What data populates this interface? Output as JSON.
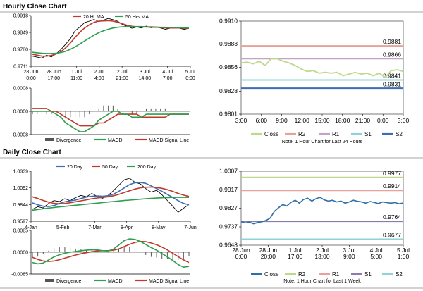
{
  "sections": {
    "hourly_title": "Hourly Close Chart",
    "daily_title": "Daily Close Chart"
  },
  "chart_data": [
    {
      "id": "hourly-price",
      "type": "line",
      "y_ticks": [
        "0.9918",
        "0.9849",
        "0.9780",
        "0.9711"
      ],
      "ylim": [
        0.9711,
        0.9918
      ],
      "x_ticks": [
        [
          "28 Jun",
          "0:00"
        ],
        [
          "28 Jun",
          "17:00"
        ],
        [
          "1 Jul",
          "11:00"
        ],
        [
          "2 Jul",
          "4:00"
        ],
        [
          "2 Jul",
          "21:00"
        ],
        [
          "3 Jul",
          "14:00"
        ],
        [
          "4 Jul",
          "7:00"
        ],
        [
          "5 Jul",
          "0:00"
        ]
      ],
      "legend": [
        "20 Hr MA",
        "50 Hrs MA"
      ],
      "colors": {
        "price": "#000000",
        "ma_fast": "#c0392b",
        "ma_slow": "#2e9e4f"
      },
      "series": [
        {
          "name": "Close",
          "values": [
            0.9752,
            0.9748,
            0.9744,
            0.9756,
            0.9749,
            0.9762,
            0.9779,
            0.9801,
            0.9823,
            0.9856,
            0.9871,
            0.9889,
            0.9895,
            0.9902,
            0.9893,
            0.9899,
            0.9906,
            0.9901,
            0.9894,
            0.9881,
            0.9874,
            0.9866,
            0.9871,
            0.9867,
            0.9875,
            0.9868,
            0.9872,
            0.9867,
            0.9862,
            0.9866,
            0.9869,
            0.9866,
            0.9862,
            0.9866
          ]
        },
        {
          "name": "20 Hr MA",
          "values": [
            0.976,
            0.9756,
            0.9752,
            0.9752,
            0.9755,
            0.9761,
            0.977,
            0.9786,
            0.9806,
            0.9829,
            0.985,
            0.9867,
            0.988,
            0.989,
            0.9895,
            0.9896,
            0.9897,
            0.9895,
            0.989,
            0.9884,
            0.9878,
            0.9874,
            0.9872,
            0.9871,
            0.9871,
            0.987,
            0.987,
            0.9869,
            0.9868,
            0.9867,
            0.9867,
            0.9867,
            0.9866,
            0.9866
          ]
        },
        {
          "name": "50 Hrs MA",
          "values": [
            0.9768,
            0.9766,
            0.9764,
            0.9763,
            0.9763,
            0.9764,
            0.9767,
            0.9772,
            0.978,
            0.979,
            0.9802,
            0.9814,
            0.9826,
            0.9838,
            0.9848,
            0.9856,
            0.9862,
            0.9867,
            0.987,
            0.9872,
            0.9873,
            0.9873,
            0.9873,
            0.9873,
            0.9872,
            0.9872,
            0.9871,
            0.987,
            0.987,
            0.9869,
            0.9869,
            0.9868,
            0.9868,
            0.9867
          ]
        }
      ]
    },
    {
      "id": "hourly-macd",
      "type": "line",
      "y_ticks": [
        "0.0008",
        "0.0000",
        "-0.0008"
      ],
      "ylim": [
        -0.0008,
        0.0008
      ],
      "legend": [
        "Divergence",
        "MACD",
        "MACD Signal Line"
      ],
      "colors": {
        "divergence": "#555555",
        "macd": "#2e9e4f",
        "signal": "#c0392b"
      },
      "series": [
        {
          "name": "MACD",
          "values": [
            0.0,
            0.0,
            0.0,
            0.0,
            0.0,
            -0.0001,
            -0.0002,
            -0.0004,
            -0.0005,
            -0.0006,
            -0.0007,
            -0.0007,
            -0.0006,
            -0.0005,
            -0.0003,
            -0.0002,
            -0.0001,
            0.0,
            0.0,
            -0.0001,
            -0.0001,
            -0.0002,
            -0.0002,
            -0.0002,
            -0.0001,
            -0.0001,
            -0.0001,
            -0.0001,
            -0.0001,
            -0.0001,
            -0.0001,
            -0.0001,
            -0.0001,
            -0.0001
          ]
        },
        {
          "name": "MACD Signal Line",
          "values": [
            0.0001,
            0.0001,
            0.0001,
            0.0001,
            0.0,
            0.0,
            -0.0001,
            -0.0002,
            -0.0003,
            -0.0004,
            -0.0005,
            -0.0005,
            -0.0005,
            -0.0005,
            -0.0004,
            -0.0004,
            -0.0003,
            -0.0002,
            -0.0001,
            -0.0001,
            -0.0001,
            -0.0001,
            -0.0001,
            -0.0002,
            -0.0002,
            -0.0002,
            -0.0002,
            -0.0002,
            -0.0002,
            -0.0001,
            -0.0001,
            -0.0001,
            -0.0001,
            -0.0001
          ]
        },
        {
          "name": "Divergence",
          "values": [
            -0.0001,
            -0.0001,
            -0.0001,
            -0.0001,
            -0.0001,
            -0.0001,
            -0.0001,
            -0.0002,
            -0.0002,
            -0.0002,
            -0.0002,
            -0.0002,
            -0.0001,
            0.0,
            0.0001,
            0.0002,
            0.0002,
            0.0002,
            0.0001,
            0.0,
            0.0,
            -0.0001,
            -0.0001,
            0.0,
            0.0001,
            0.0001,
            0.0001,
            0.0001,
            0.0001,
            0.0,
            0.0,
            0.0,
            0.0,
            0.0
          ]
        }
      ]
    },
    {
      "id": "hourly-levels",
      "type": "line",
      "y_ticks": [
        "0.9910",
        "0.9883",
        "0.9856",
        "0.9828",
        "0.9801"
      ],
      "ylim": [
        0.9801,
        0.991
      ],
      "x_ticks": [
        "3:00",
        "6:00",
        "9:00",
        "12:00",
        "15:00",
        "18:00",
        "21:00",
        "0:00",
        "3:00"
      ],
      "levels": [
        {
          "name": "R2",
          "value": 0.9881,
          "label": "0.9881",
          "color": "#e8a09a",
          "width": 2
        },
        {
          "name": "R1",
          "value": 0.9866,
          "label": "0.9866",
          "color": "#c9a0c8",
          "width": 2
        },
        {
          "name": "S1",
          "value": 0.9841,
          "label": "0.9841",
          "color": "#8fd3d8",
          "width": 2
        },
        {
          "name": "S2",
          "value": 0.9831,
          "label": "0.9831",
          "color": "#3c6eb4",
          "width": 3
        }
      ],
      "series": [
        {
          "name": "Close",
          "color": "#bcd98a",
          "values": [
            0.9861,
            0.9862,
            0.986,
            0.9863,
            0.9858,
            0.9866,
            0.9866,
            0.9863,
            0.9861,
            0.9858,
            0.9854,
            0.9851,
            0.9852,
            0.9849,
            0.985,
            0.9849,
            0.985,
            0.9846,
            0.9848,
            0.985,
            0.9848,
            0.9849,
            0.9846,
            0.9849,
            0.9844,
            0.9852,
            0.9853,
            0.9851
          ]
        }
      ],
      "legend": [
        "Close",
        "R2",
        "R1",
        "S1",
        "S2"
      ],
      "note": "Note: 1 Hour Chart for Last 24 Hours"
    },
    {
      "id": "daily-price",
      "type": "line",
      "y_ticks": [
        "1.0339",
        "1.0092",
        "0.9844",
        "0.9597"
      ],
      "ylim": [
        0.9597,
        1.0339
      ],
      "x_ticks": [
        "4-Jan",
        "5-Feb",
        "7-Mar",
        "8-Apr",
        "8-May",
        "7-Jun"
      ],
      "legend": [
        "20 Day",
        "50 Day",
        "200 Day"
      ],
      "colors": {
        "price": "#000000",
        "ma20": "#3c6eb4",
        "ma50": "#c0392b",
        "ma200": "#2e9e4f"
      },
      "series": [
        {
          "name": "Close",
          "values": [
            0.9775,
            0.9812,
            0.9794,
            0.9862,
            0.9903,
            0.9889,
            0.9931,
            0.9902,
            0.9948,
            0.9981,
            0.9961,
            1.001,
            0.9965,
            0.9938,
            0.998,
            1.005,
            1.013,
            1.021,
            1.0235,
            1.0175,
            1.015,
            1.008,
            1.003,
            1.0055,
            0.999,
            0.9905,
            0.982,
            0.973,
            0.979,
            0.9844
          ]
        },
        {
          "name": "20 Day",
          "values": [
            0.987,
            0.984,
            0.982,
            0.9815,
            0.983,
            0.986,
            0.9885,
            0.99,
            0.9912,
            0.9935,
            0.9955,
            0.9968,
            0.9972,
            0.9968,
            0.9975,
            0.9998,
            1.004,
            1.009,
            1.014,
            1.0168,
            1.0172,
            1.0158,
            1.0122,
            1.0082,
            1.004,
            0.9995,
            0.995,
            0.9902,
            0.9862,
            0.984
          ]
        },
        {
          "name": "50 Day",
          "values": [
            0.996,
            0.9935,
            0.9905,
            0.988,
            0.9862,
            0.9855,
            0.986,
            0.9872,
            0.9886,
            0.99,
            0.9915,
            0.993,
            0.9942,
            0.995,
            0.996,
            0.9975,
            0.9995,
            1.0022,
            1.005,
            1.0075,
            1.0092,
            1.0102,
            1.0104,
            1.0098,
            1.0085,
            1.0065,
            1.004,
            1.001,
            0.9985,
            0.9965
          ]
        },
        {
          "name": "200 Day",
          "values": [
            0.976,
            0.9772,
            0.9782,
            0.9792,
            0.9802,
            0.981,
            0.9818,
            0.9826,
            0.9834,
            0.9842,
            0.985,
            0.9858,
            0.9866,
            0.9874,
            0.9882,
            0.989,
            0.9897,
            0.9904,
            0.9911,
            0.9918,
            0.9924,
            0.993,
            0.9936,
            0.9941,
            0.9945,
            0.9948,
            0.995,
            0.9951,
            0.9951,
            0.995
          ]
        }
      ]
    },
    {
      "id": "daily-macd",
      "type": "line",
      "y_ticks": [
        "0.0085",
        "0.0000",
        "-0.0085"
      ],
      "ylim": [
        -0.0085,
        0.0085
      ],
      "legend": [
        "Divergence",
        "MACD",
        "MACD Signal Line"
      ],
      "colors": {
        "divergence": "#555555",
        "macd": "#2e9e4f",
        "signal": "#c0392b"
      },
      "series": [
        {
          "name": "MACD",
          "values": [
            -0.004,
            -0.0045,
            -0.0042,
            -0.003,
            -0.0018,
            -0.001,
            -0.0004,
            0.0,
            0.0003,
            0.0006,
            0.0008,
            0.001,
            0.0009,
            0.0006,
            0.0005,
            0.0012,
            0.0028,
            0.0045,
            0.0052,
            0.005,
            0.0042,
            0.003,
            0.0018,
            0.0008,
            -0.0005,
            -0.0018,
            -0.0032,
            -0.0048,
            -0.0058,
            -0.0055
          ]
        },
        {
          "name": "MACD Signal Line",
          "values": [
            -0.002,
            -0.0028,
            -0.0034,
            -0.0036,
            -0.0034,
            -0.0029,
            -0.0023,
            -0.0017,
            -0.0011,
            -0.0006,
            -0.0002,
            0.0002,
            0.0005,
            0.0006,
            0.0006,
            0.0008,
            0.0013,
            0.0022,
            0.0031,
            0.0038,
            0.0042,
            0.0041,
            0.0036,
            0.0029,
            0.002,
            0.0009,
            -0.0004,
            -0.0017,
            -0.003,
            -0.004
          ]
        },
        {
          "name": "Divergence",
          "values": [
            -0.002,
            -0.0017,
            -0.0008,
            0.0006,
            0.0016,
            0.0019,
            0.0019,
            0.0017,
            0.0014,
            0.0012,
            0.001,
            0.0008,
            0.0004,
            0.0,
            -0.0001,
            0.0004,
            0.0015,
            0.0023,
            0.0021,
            0.0012,
            0.0,
            -0.0011,
            -0.0018,
            -0.0021,
            -0.0025,
            -0.0027,
            -0.0028,
            -0.0031,
            -0.0028,
            -0.0015
          ]
        }
      ]
    },
    {
      "id": "daily-levels",
      "type": "line",
      "y_ticks": [
        "1.0007",
        "0.9917",
        "0.9827",
        "0.9737",
        "0.9648"
      ],
      "ylim": [
        0.9648,
        1.0007
      ],
      "x_ticks": [
        [
          "28 Jun",
          "0:00"
        ],
        [
          "28 Jun",
          "20:00"
        ],
        [
          "1 Jul",
          "17:00"
        ],
        [
          "2 Jul",
          "13:00"
        ],
        [
          "3 Jul",
          "9:00"
        ],
        [
          "4 Jul",
          "5:00"
        ],
        [
          "5 Jul",
          "1:00"
        ]
      ],
      "levels": [
        {
          "name": "R2",
          "value": 0.9977,
          "label": "0.9977",
          "color": "#bcd98a",
          "width": 2
        },
        {
          "name": "R1",
          "value": 0.9914,
          "label": "0.9914",
          "color": "#e8a09a",
          "width": 2
        },
        {
          "name": "S1",
          "value": 0.9764,
          "label": "0.9764",
          "color": "#8b7bb0",
          "width": 2
        },
        {
          "name": "S2",
          "value": 0.9677,
          "label": "0.9677",
          "color": "#8fd3d8",
          "width": 2
        }
      ],
      "series": [
        {
          "name": "Close",
          "color": "#2f6fa8",
          "values": [
            0.9762,
            0.9756,
            0.976,
            0.9752,
            0.9758,
            0.9762,
            0.9768,
            0.978,
            0.9812,
            0.983,
            0.9845,
            0.9838,
            0.9856,
            0.9866,
            0.9852,
            0.987,
            0.9876,
            0.9862,
            0.9874,
            0.988,
            0.9868,
            0.9862,
            0.9866,
            0.9858,
            0.9862,
            0.9852,
            0.9858,
            0.9866,
            0.9861,
            0.9858,
            0.9852,
            0.986,
            0.9856,
            0.985,
            0.9858,
            0.9855,
            0.9852,
            0.9855,
            0.9849,
            0.9853
          ]
        }
      ],
      "legend": [
        "Close",
        "R2",
        "R1",
        "S1",
        "S2"
      ],
      "note": "Note: 1 Hour Chart for Last 1 Week"
    }
  ]
}
